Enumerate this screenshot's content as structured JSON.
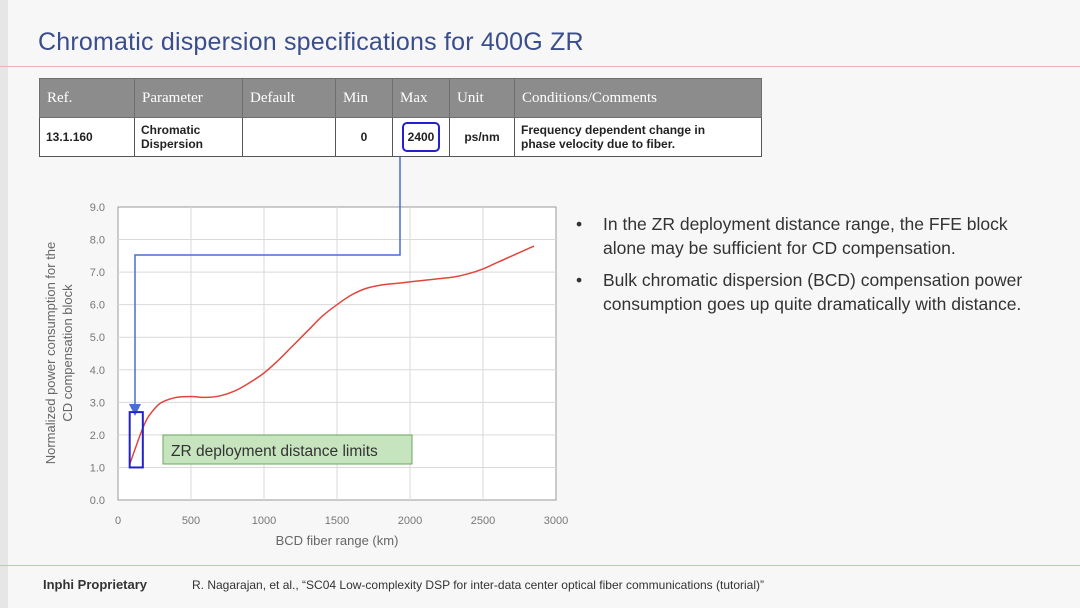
{
  "title": "Chromatic dispersion specifications for 400G ZR",
  "table": {
    "headers": [
      "Ref.",
      "Parameter",
      "Default",
      "Min",
      "Max",
      "Unit",
      "Conditions/Comments"
    ],
    "row": {
      "ref": "13.1.160",
      "parameter_line1": "Chromatic",
      "parameter_line2": "Dispersion",
      "default": "",
      "min": "0",
      "max": "2400",
      "unit": "ps/nm",
      "comments_line1": "Frequency dependent change in",
      "comments_line2": "phase velocity due to fiber."
    }
  },
  "chart_data": {
    "type": "line",
    "title": "",
    "xlabel": "BCD fiber range (km)",
    "ylabel_line1": "Normalized power consumption for the",
    "ylabel_line2": "CD compensation block",
    "xlim": [
      0,
      3000
    ],
    "ylim": [
      0,
      9
    ],
    "x_ticks": [
      "0",
      "500",
      "1000",
      "1500",
      "2000",
      "2500",
      "3000"
    ],
    "y_ticks": [
      "0.0",
      "1.0",
      "2.0",
      "3.0",
      "4.0",
      "5.0",
      "6.0",
      "7.0",
      "8.0",
      "9.0"
    ],
    "grid": true,
    "series": [
      {
        "color": "#e0463c",
        "x": [
          80,
          120,
          160,
          200,
          250,
          300,
          400,
          500,
          600,
          700,
          800,
          900,
          1000,
          1100,
          1200,
          1300,
          1400,
          1500,
          1600,
          1700,
          1800,
          1900,
          2000,
          2100,
          2200,
          2300,
          2400,
          2500,
          2600,
          2700,
          2800,
          2850
        ],
        "y": [
          1.1,
          1.6,
          2.1,
          2.5,
          2.8,
          3.0,
          3.15,
          3.18,
          3.15,
          3.2,
          3.35,
          3.6,
          3.9,
          4.3,
          4.75,
          5.2,
          5.65,
          6.0,
          6.3,
          6.5,
          6.6,
          6.65,
          6.7,
          6.75,
          6.8,
          6.85,
          6.95,
          7.1,
          7.3,
          7.5,
          7.7,
          7.8
        ]
      }
    ],
    "annotation_label": "ZR deployment distance limits",
    "highlight_box": {
      "x_min": 80,
      "x_max": 170,
      "y_min": 1.0,
      "y_max": 2.7
    }
  },
  "bullets": [
    "In the ZR deployment distance range, the FFE block alone may be sufficient for CD compensation.",
    "Bulk chromatic dispersion (BCD) compensation power consumption goes up quite dramatically with distance."
  ],
  "bullet_symbol": "•",
  "footer": {
    "left": "Inphi Proprietary",
    "right": "R. Nagarajan, et al., “SC04  Low-complexity DSP for inter-data center optical fiber communications (tutorial)”"
  },
  "colors": {
    "title": "#3a4e8c",
    "curve": "#e0463c",
    "highlight": "#2222cc",
    "annotation_fill": "#c6e5bf",
    "annotation_border": "#6aa85c"
  }
}
